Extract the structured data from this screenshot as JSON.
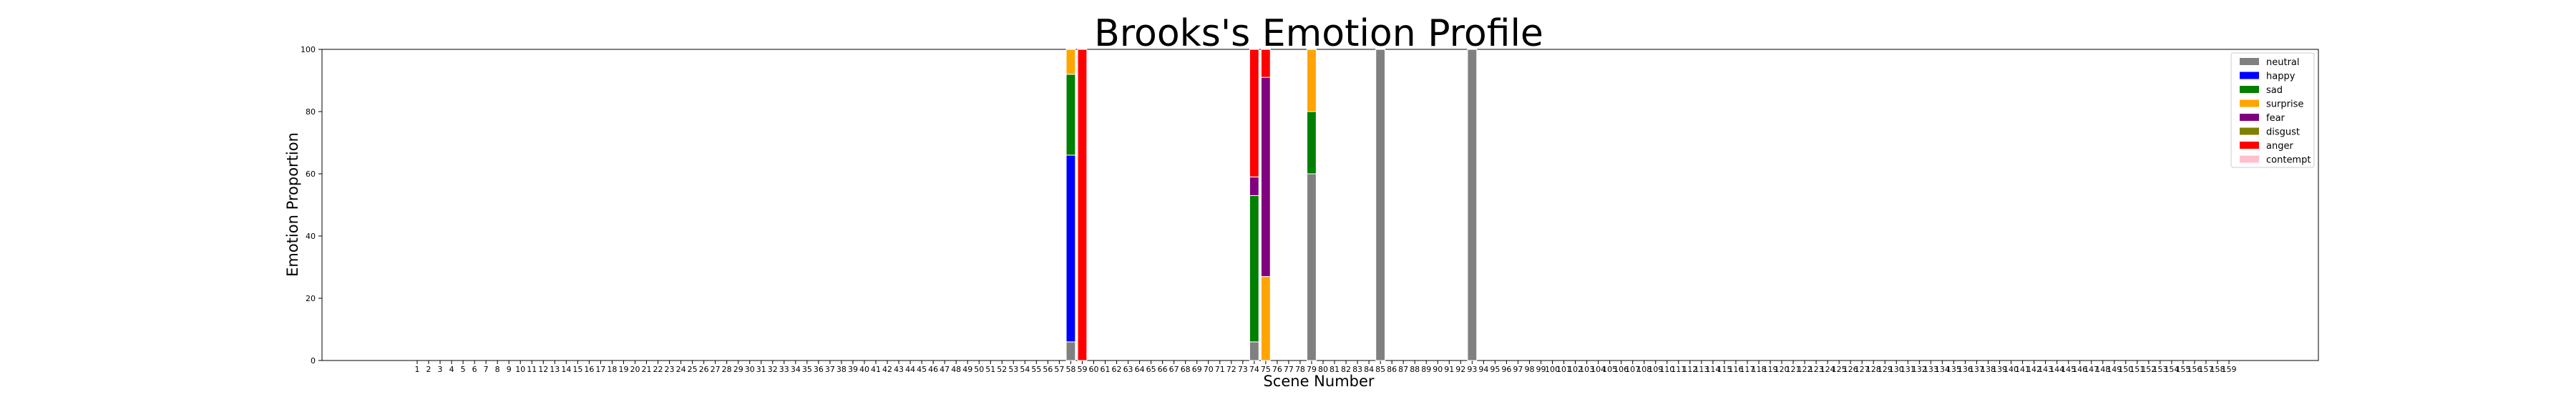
{
  "chart_data": {
    "type": "bar",
    "stacked": true,
    "title": "Brooks's Emotion Profile",
    "xlabel": "Scene Number",
    "ylabel": "Emotion Proportion",
    "ylim": [
      0,
      100
    ],
    "yticks": [
      0,
      20,
      40,
      60,
      80,
      100
    ],
    "categories": [
      "1",
      "2",
      "3",
      "4",
      "5",
      "6",
      "7",
      "8",
      "9",
      "10",
      "11",
      "12",
      "13",
      "14",
      "15",
      "16",
      "17",
      "18",
      "19",
      "20",
      "21",
      "22",
      "23",
      "24",
      "25",
      "26",
      "27",
      "28",
      "29",
      "30",
      "31",
      "32",
      "33",
      "34",
      "35",
      "36",
      "37",
      "38",
      "39",
      "40",
      "41",
      "42",
      "43",
      "44",
      "45",
      "46",
      "47",
      "48",
      "49",
      "50",
      "51",
      "52",
      "53",
      "54",
      "55",
      "56",
      "57",
      "58",
      "59",
      "60",
      "61",
      "62",
      "63",
      "64",
      "65",
      "66",
      "67",
      "68",
      "69",
      "70",
      "71",
      "72",
      "73",
      "74",
      "75",
      "76",
      "77",
      "78",
      "79",
      "80",
      "81",
      "82",
      "83",
      "84",
      "85",
      "86",
      "87",
      "88",
      "89",
      "90",
      "91",
      "92",
      "93",
      "94",
      "95",
      "96",
      "97",
      "98",
      "99",
      "100",
      "101",
      "102",
      "103",
      "104",
      "105",
      "106",
      "107",
      "108",
      "109",
      "110",
      "111",
      "112",
      "113",
      "114",
      "115",
      "116",
      "117",
      "118",
      "119",
      "120",
      "121",
      "122",
      "123",
      "124",
      "125",
      "126",
      "127",
      "128",
      "129",
      "130",
      "131",
      "132",
      "133",
      "134",
      "135",
      "136",
      "137",
      "138",
      "139",
      "140",
      "141",
      "142",
      "143",
      "144",
      "145",
      "146",
      "147",
      "148",
      "149",
      "150",
      "151",
      "152",
      "153",
      "154",
      "155",
      "156",
      "157",
      "158",
      "159"
    ],
    "legend_position": "top-right",
    "emotions": [
      {
        "name": "neutral",
        "color": "#808080"
      },
      {
        "name": "happy",
        "color": "#0000ff"
      },
      {
        "name": "sad",
        "color": "#008000"
      },
      {
        "name": "surprise",
        "color": "#ffa500"
      },
      {
        "name": "fear",
        "color": "#800080"
      },
      {
        "name": "disgust",
        "color": "#808000"
      },
      {
        "name": "anger",
        "color": "#ff0000"
      },
      {
        "name": "contempt",
        "color": "#ffc0cb"
      }
    ],
    "bars": [
      {
        "scene": "58",
        "values": {
          "neutral": 6,
          "happy": 60,
          "sad": 26,
          "surprise": 8,
          "fear": 0,
          "disgust": 0,
          "anger": 0,
          "contempt": 0
        }
      },
      {
        "scene": "59",
        "values": {
          "neutral": 0,
          "happy": 0,
          "sad": 0,
          "surprise": 0,
          "fear": 0,
          "disgust": 0,
          "anger": 100,
          "contempt": 0
        }
      },
      {
        "scene": "74",
        "values": {
          "neutral": 6,
          "happy": 0,
          "sad": 47,
          "surprise": 0,
          "fear": 6,
          "disgust": 0,
          "anger": 41,
          "contempt": 0
        }
      },
      {
        "scene": "75",
        "values": {
          "neutral": 0,
          "happy": 0,
          "sad": 0,
          "surprise": 27,
          "fear": 64,
          "disgust": 0,
          "anger": 9,
          "contempt": 0
        }
      },
      {
        "scene": "79",
        "values": {
          "neutral": 60,
          "happy": 0,
          "sad": 20,
          "surprise": 20,
          "fear": 0,
          "disgust": 0,
          "anger": 0,
          "contempt": 0
        }
      },
      {
        "scene": "85",
        "values": {
          "neutral": 100,
          "happy": 0,
          "sad": 0,
          "surprise": 0,
          "fear": 0,
          "disgust": 0,
          "anger": 0,
          "contempt": 0
        }
      },
      {
        "scene": "93",
        "values": {
          "neutral": 100,
          "happy": 0,
          "sad": 0,
          "surprise": 0,
          "fear": 0,
          "disgust": 0,
          "anger": 0,
          "contempt": 0
        }
      }
    ]
  }
}
